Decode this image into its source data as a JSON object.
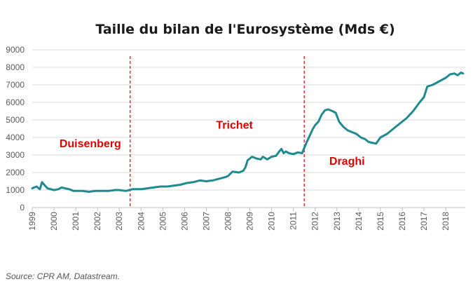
{
  "chart_data": {
    "type": "line",
    "title": "Taille du bilan de l'Eurosystème (Mds €)",
    "source": "Source: CPR AM, Datastream.",
    "xlabel": "",
    "ylabel": "",
    "xlim": [
      1999.0,
      2018.9
    ],
    "ylim": [
      0,
      9000
    ],
    "yticks": [
      0,
      1000,
      2000,
      3000,
      4000,
      5000,
      6000,
      7000,
      8000,
      9000
    ],
    "ytick_labels": [
      "0",
      "1000",
      "2000",
      "3000",
      "4000",
      "5000",
      "6000",
      "7000",
      "8000",
      "9000"
    ],
    "xticks": [
      1999,
      2000,
      2001,
      2002,
      2003,
      2004,
      2005,
      2006,
      2007,
      2008,
      2009,
      2010,
      2011,
      2012,
      2013,
      2014,
      2015,
      2016,
      2017,
      2018
    ],
    "xtick_labels": [
      "1999",
      "2000",
      "2001",
      "2002",
      "2003",
      "2004",
      "2005",
      "2006",
      "2007",
      "2008",
      "2009",
      "2010",
      "2011",
      "2012",
      "2013",
      "2014",
      "2015",
      "2016",
      "2017",
      "2018"
    ],
    "grid": "horizontal",
    "line_color": "#1f8b8e",
    "annotation_color": "#e00000",
    "series": [
      {
        "name": "",
        "x": [
          1999.0,
          1999.2,
          1999.35,
          1999.45,
          1999.55,
          1999.7,
          1999.85,
          2000.0,
          2000.2,
          2000.35,
          2000.5,
          2000.7,
          2000.9,
          2001.0,
          2001.3,
          2001.6,
          2001.9,
          2002.2,
          2002.5,
          2002.8,
          2003.0,
          2003.3,
          2003.6,
          2003.8,
          2004.0,
          2004.3,
          2004.6,
          2004.9,
          2005.2,
          2005.5,
          2005.8,
          2006.1,
          2006.4,
          2006.7,
          2007.0,
          2007.3,
          2007.6,
          2007.9,
          2008.0,
          2008.2,
          2008.5,
          2008.7,
          2008.8,
          2008.9,
          2009.0,
          2009.1,
          2009.3,
          2009.5,
          2009.6,
          2009.8,
          2010.0,
          2010.2,
          2010.35,
          2010.45,
          2010.55,
          2010.65,
          2010.8,
          2011.0,
          2011.2,
          2011.4,
          2011.6,
          2011.75,
          2011.9,
          2012.0,
          2012.15,
          2012.3,
          2012.45,
          2012.6,
          2012.8,
          2012.95,
          2013.1,
          2013.3,
          2013.5,
          2013.7,
          2013.9,
          2014.1,
          2014.3,
          2014.45,
          2014.6,
          2014.8,
          2015.0,
          2015.3,
          2015.6,
          2015.9,
          2016.2,
          2016.5,
          2016.8,
          2017.0,
          2017.15,
          2017.4,
          2017.7,
          2018.0,
          2018.2,
          2018.4,
          2018.55,
          2018.7,
          2018.8
        ],
        "y": [
          1100,
          1200,
          1050,
          1450,
          1300,
          1100,
          1050,
          1000,
          1050,
          1150,
          1100,
          1050,
          950,
          950,
          950,
          900,
          950,
          950,
          950,
          1000,
          1000,
          950,
          1050,
          1050,
          1050,
          1100,
          1150,
          1200,
          1200,
          1250,
          1300,
          1400,
          1450,
          1550,
          1500,
          1550,
          1650,
          1750,
          1800,
          2050,
          2000,
          2100,
          2300,
          2700,
          2800,
          2900,
          2800,
          2750,
          2900,
          2750,
          2900,
          2950,
          3200,
          3350,
          3100,
          3200,
          3100,
          3050,
          3150,
          3100,
          3700,
          4100,
          4500,
          4700,
          4900,
          5300,
          5550,
          5600,
          5500,
          5400,
          4900,
          4600,
          4400,
          4300,
          4200,
          4000,
          3900,
          3750,
          3700,
          3650,
          4000,
          4200,
          4500,
          4800,
          5100,
          5500,
          6000,
          6300,
          6900,
          7000,
          7200,
          7400,
          7600,
          7650,
          7550,
          7700,
          7650
        ]
      }
    ],
    "vlines": [
      2003.5,
      2011.5
    ],
    "annotations": [
      {
        "text": "Duisenberg",
        "x": 2000.25,
        "y": 3450
      },
      {
        "text": "Trichet",
        "x": 2007.45,
        "y": 4500
      },
      {
        "text": "Draghi",
        "x": 2012.65,
        "y": 2450
      }
    ]
  }
}
